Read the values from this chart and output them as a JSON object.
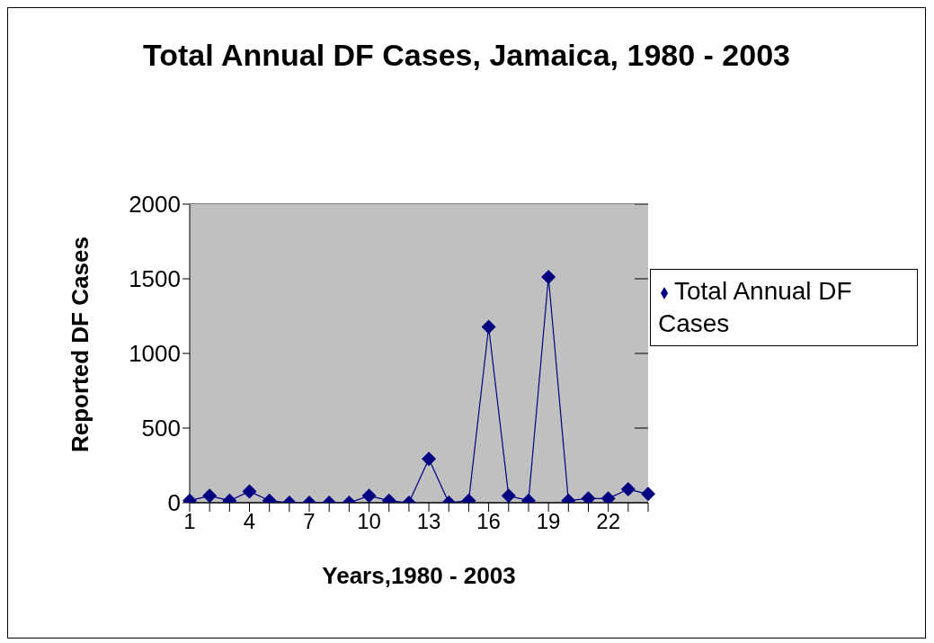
{
  "chart_data": {
    "type": "line",
    "title": "Total Annual DF Cases, Jamaica, 1980 - 2003",
    "xlabel": "Years,1980 - 2003",
    "ylabel": "Reported DF Cases",
    "categories": [
      "1",
      null,
      null,
      "4",
      null,
      null,
      "7",
      null,
      null,
      "10",
      null,
      null,
      "13",
      null,
      null,
      "16",
      null,
      null,
      "19",
      null,
      null,
      "22",
      null,
      null
    ],
    "series": [
      {
        "name": "Total Annual DF Cases",
        "color": "#000080",
        "values": [
          14,
          46,
          14,
          76,
          14,
          0,
          0,
          0,
          0,
          46,
          14,
          0,
          294,
          0,
          14,
          1178,
          46,
          14,
          1512,
          14,
          28,
          28,
          90,
          58
        ]
      }
    ],
    "ylim": [
      0,
      2000
    ],
    "yticks": [
      0,
      500,
      1000,
      1500,
      2000
    ],
    "grid": "y",
    "legend": "right",
    "marker": "diamond",
    "line_style": "solid"
  }
}
